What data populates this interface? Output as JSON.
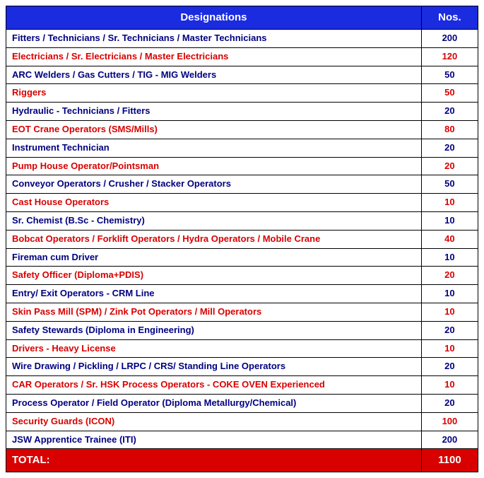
{
  "header": {
    "designations": "Designations",
    "nos": "Nos."
  },
  "rows": [
    {
      "label": "Fitters / Technicians / Sr. Technicians / Master Technicians",
      "nos": "200",
      "color": "blue"
    },
    {
      "label": "Electricians / Sr. Electricians / Master Electricians",
      "nos": "120",
      "color": "red"
    },
    {
      "label": "ARC Welders / Gas Cutters / TIG - MIG Welders",
      "nos": "50",
      "color": "blue"
    },
    {
      "label": "Riggers",
      "nos": "50",
      "color": "red"
    },
    {
      "label": "Hydraulic - Technicians / Fitters",
      "nos": "20",
      "color": "blue"
    },
    {
      "label": "EOT Crane Operators (SMS/Mills)",
      "nos": "80",
      "color": "red"
    },
    {
      "label": "Instrument Technician",
      "nos": "20",
      "color": "blue"
    },
    {
      "label": "Pump House Operator/Pointsman",
      "nos": "20",
      "color": "red"
    },
    {
      "label": "Conveyor Operators / Crusher / Stacker Operators",
      "nos": "50",
      "color": "blue"
    },
    {
      "label": "Cast House Operators",
      "nos": "10",
      "color": "red"
    },
    {
      "label": "Sr. Chemist (B.Sc - Chemistry)",
      "nos": "10",
      "color": "blue"
    },
    {
      "label": "Bobcat Operators / Forklift Operators / Hydra Operators / Mobile Crane",
      "nos": "40",
      "color": "red"
    },
    {
      "label": "Fireman cum Driver",
      "nos": "10",
      "color": "blue"
    },
    {
      "label": "Safety Officer (Diploma+PDIS)",
      "nos": "20",
      "color": "red"
    },
    {
      "label": "Entry/ Exit Operators - CRM Line",
      "nos": "10",
      "color": "blue"
    },
    {
      "label": "Skin Pass Mill (SPM) / Zink Pot Operators / Mill Operators",
      "nos": "10",
      "color": "red"
    },
    {
      "label": "Safety Stewards (Diploma in Engineering)",
      "nos": "20",
      "color": "blue"
    },
    {
      "label": "Drivers - Heavy License",
      "nos": "10",
      "color": "red"
    },
    {
      "label": "Wire Drawing / Pickling / LRPC / CRS/ Standing Line Operators",
      "nos": "20",
      "color": "blue"
    },
    {
      "label": "CAR Operators / Sr. HSK Process Operators - COKE OVEN Experienced",
      "nos": "10",
      "color": "red"
    },
    {
      "label": "Process Operator / Field Operator (Diploma Metallurgy/Chemical)",
      "nos": "20",
      "color": "blue"
    },
    {
      "label": "Security Guards (ICON)",
      "nos": "100",
      "color": "red"
    },
    {
      "label": "JSW Apprentice Trainee (ITI)",
      "nos": "200",
      "color": "blue"
    }
  ],
  "total": {
    "label": "TOTAL:",
    "nos": "1100"
  }
}
